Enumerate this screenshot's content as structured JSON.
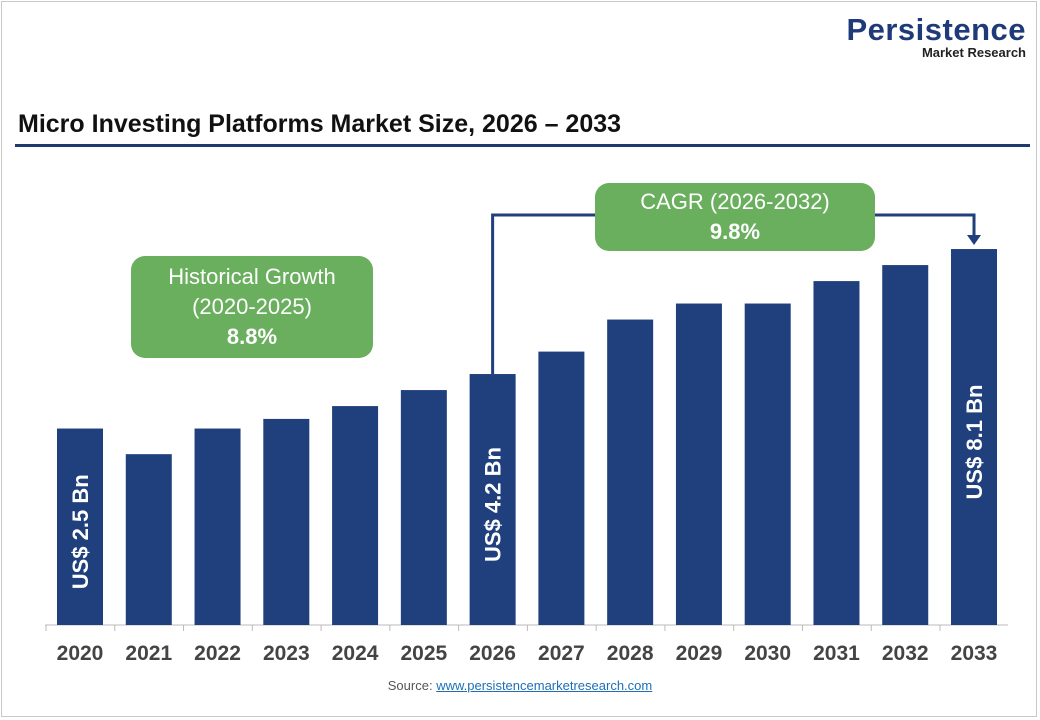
{
  "brand": {
    "name": "Persistence",
    "sub": "Market Research"
  },
  "source": {
    "label": "Source:",
    "link": "www.persistencemarketresearch.com"
  },
  "chart_data": {
    "type": "bar",
    "title": "Micro Investing Platforms Market Size, 2026 – 2033",
    "categories": [
      "2020",
      "2021",
      "2022",
      "2023",
      "2024",
      "2025",
      "2026",
      "2027",
      "2028",
      "2029",
      "2030",
      "2031",
      "2032",
      "2033"
    ],
    "values": [
      2.5,
      1.7,
      2.5,
      2.8,
      3.2,
      3.7,
      4.2,
      4.9,
      5.9,
      6.4,
      6.4,
      7.1,
      7.6,
      8.1
    ],
    "unit": "US$ Bn",
    "data_labels": {
      "2020": "US$ 2.5 Bn",
      "2026": "US$ 4.2 Bn",
      "2033": "US$ 8.1 Bn"
    },
    "bar_color": "#1f3f7d",
    "annotations": {
      "historical": {
        "line1": "Historical Growth",
        "line2": "(2020-2025)",
        "value": "8.8%"
      },
      "cagr": {
        "line1": "CAGR (2026-2032)",
        "value": "9.8%"
      },
      "box_color": "#6aaf5e"
    },
    "xlabel": "",
    "ylabel": "",
    "grid": false
  }
}
